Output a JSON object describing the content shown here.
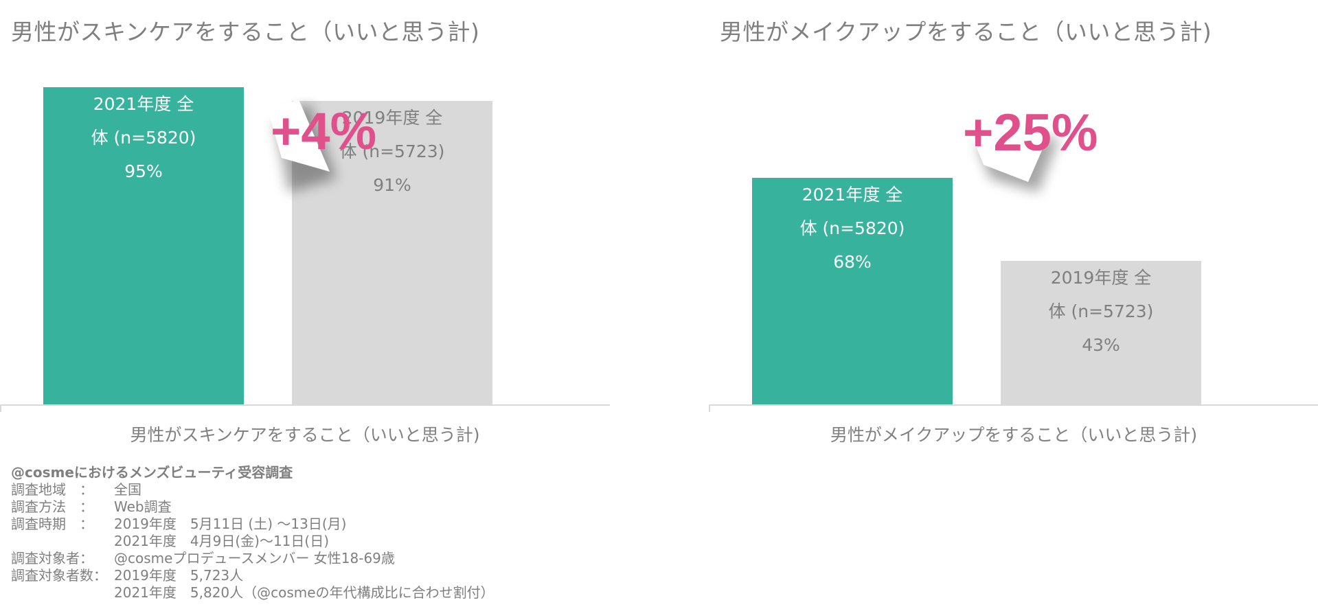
{
  "chart_data": [
    {
      "type": "bar",
      "title": "男性がスキンケアをすること（いいと思う計)",
      "categories": [
        "男性がスキンケアをすること（いいと思う計)"
      ],
      "series": [
        {
          "name": "2021年度 全体 (n=5820)",
          "values": [
            95
          ],
          "label_lines": [
            "2021年度 全",
            "体 (n=5820)",
            "95%"
          ]
        },
        {
          "name": "2019年度 全体 (n=5723)",
          "values": [
            91
          ],
          "label_lines": [
            "2019年度 全",
            "体 (n=5723)",
            "91%"
          ]
        }
      ],
      "annotation": "+4%",
      "ylim": [
        0,
        100
      ]
    },
    {
      "type": "bar",
      "title": "男性がメイクアップをすること（いいと思う計)",
      "categories": [
        "男性がメイクアップをすること（いいと思う計)"
      ],
      "series": [
        {
          "name": "2021年度 全体 (n=5820)",
          "values": [
            68
          ],
          "label_lines": [
            "2021年度 全",
            "体 (n=5820)",
            "68%"
          ]
        },
        {
          "name": "2019年度 全体 (n=5723)",
          "values": [
            43
          ],
          "label_lines": [
            "2019年度 全",
            "体 (n=5723)",
            "43%"
          ]
        }
      ],
      "annotation": "+25%",
      "ylim": [
        0,
        100
      ]
    }
  ],
  "colors": {
    "series_2021": "#37b29c",
    "series_2019": "#d9d9d9",
    "label_on_2021": "#ffffff",
    "label_on_2019": "#7f7f7f",
    "annotation": "#e0508a"
  },
  "notes": {
    "title": "@cosmeにおけるメンズビューティ受容調査",
    "rows": [
      {
        "k": "調査地域　：",
        "v": "全国"
      },
      {
        "k": "調査方法　：",
        "v": "Web調査"
      },
      {
        "k": "調査時期　：",
        "v": "2019年度　5月11日 (土) ～13日(月)"
      },
      {
        "k": "",
        "v": "2021年度　4月9日(金)～11日(日)"
      },
      {
        "k": "調査対象者：",
        "v": "@cosmeプロデュースメンバー 女性18-69歳"
      },
      {
        "k": "調査対象者数：",
        "v": "2019年度　5,723人"
      },
      {
        "k": "",
        "v": "2021年度　5,820人（@cosmeの年代構成比に合わせ割付）"
      }
    ]
  }
}
